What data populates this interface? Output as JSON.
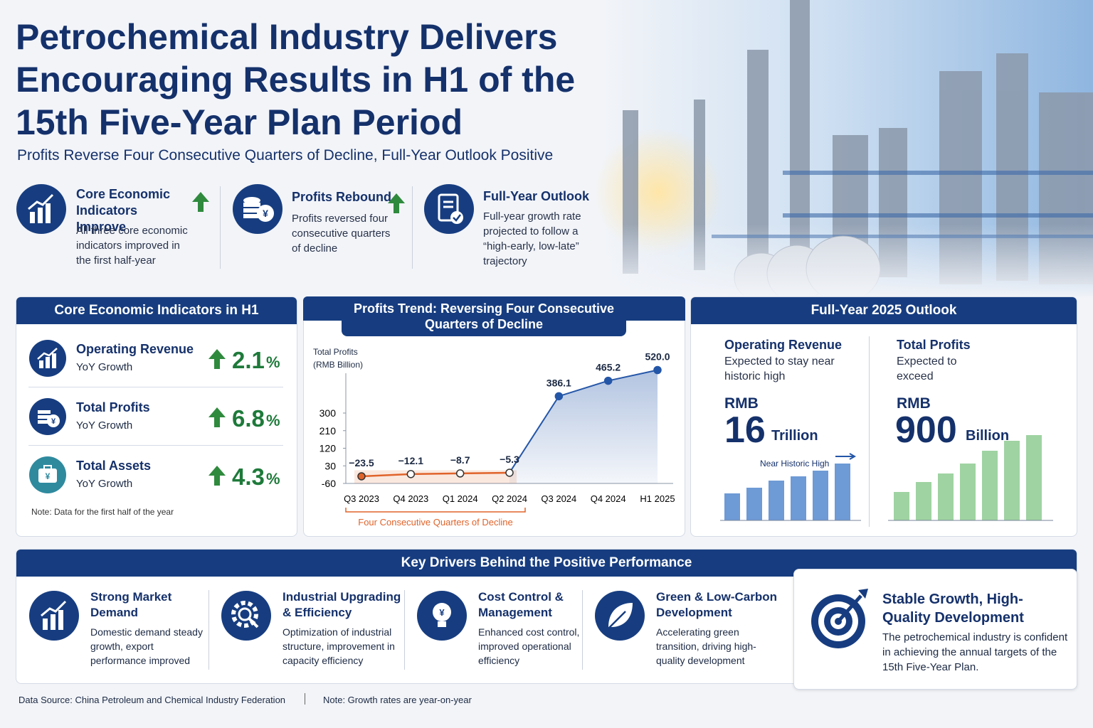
{
  "header": {
    "title_lines": [
      "Petrochemical Industry Delivers",
      "Encouraging Results in H1 of the",
      "15th Five-Year Plan Period"
    ],
    "subtitle": "Profits Reverse Four Consecutive Quarters of Decline, Full-Year Outlook Positive"
  },
  "highlights": [
    {
      "title": "Core Economic Indicators Improve",
      "text": "All three core economic indicators improved in the first half-year"
    },
    {
      "title": "Profits Rebound",
      "text": "Profits reversed four consecutive quarters of decline"
    },
    {
      "title": "Full-Year Outlook",
      "text": "Full-year growth rate projected to follow a “high-early, low-late” trajectory"
    }
  ],
  "indicators": {
    "title": "Core Economic Indicators in H1",
    "items": [
      {
        "name": "Operating Revenue",
        "label": "YoY Growth",
        "value": 2.1,
        "unit": "%"
      },
      {
        "name": "Total Profits",
        "label": "YoY Growth",
        "value": 6.8,
        "unit": "%"
      },
      {
        "name": "Total Assets",
        "label": "YoY Growth",
        "value": 4.3,
        "unit": "%"
      }
    ],
    "note": "Note: Data for the first half of the year"
  },
  "chart_data": {
    "type": "line",
    "title": "Profits Trend: Reversing Four Consecutive Quarters of Decline",
    "y_label": "Total Profits (RMB Billion)",
    "categories": [
      "Q3 2023",
      "Q4 2023",
      "Q1 2024",
      "Q2 2024",
      "Q3 2024",
      "Q4 2024",
      "H1 2025"
    ],
    "values": [
      -23.5,
      -12.1,
      -8.7,
      -5.3,
      386.1,
      465.2,
      520.0
    ],
    "value_labels": [
      "−23.5",
      "−12.1",
      "−8.7",
      "−5.3",
      "386.1",
      "465.2",
      "520.0"
    ],
    "color": "#2456a8",
    "negative_color": "#e0632a",
    "annotation": "Four Consecutive Quarters of Decline",
    "ylim": [
      -60,
      540
    ],
    "yticks": [
      -60,
      30,
      120,
      210,
      300
    ],
    "grid": false
  },
  "outlook": {
    "title": "Full-Year 2025 Outlook",
    "items": [
      {
        "name": "Operating Revenue",
        "text": "Expected to stay near historic high",
        "currency": "RMB",
        "value": 16,
        "unit": "Trillion",
        "bar_label": "Near Historic High"
      },
      {
        "name": "Total Profits",
        "text": "Expected to exceed",
        "currency": "RMB",
        "value": 900,
        "unit": "Billion"
      }
    ]
  },
  "drivers": {
    "title": "Key Drivers Behind the Positive Performance",
    "items": [
      {
        "title": "Strong Market Demand",
        "text": "Domestic demand steady growth, export performance improved"
      },
      {
        "title": "Industrial Upgrading & Efficiency",
        "text": "Optimization of industrial structure, improvement in capacity efficiency"
      },
      {
        "title": "Cost Control & Management",
        "text": "Enhanced cost control, improved operational efficiency"
      },
      {
        "title": "Green & Low-Carbon Development",
        "text": "Accelerating green transition, driving high-quality development"
      }
    ],
    "conclusion": {
      "title": "Stable Growth, High-Quality Development",
      "text": "The petrochemical industry is confident in achieving the annual targets of the 15th Five-Year Plan."
    }
  },
  "footer": {
    "source": "Data Source: China Petroleum and Chemical Industry Federation",
    "note": "Note: Growth rates are year-on-year"
  }
}
